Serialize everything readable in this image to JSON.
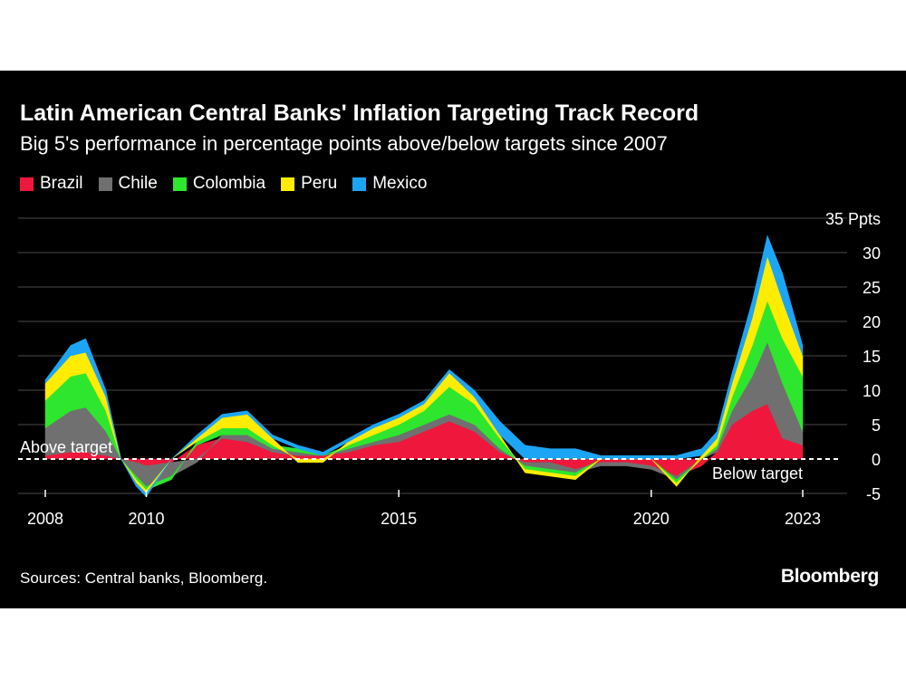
{
  "chart_data": {
    "type": "area",
    "title": "Latin American Central Banks' Inflation Targeting Track Record",
    "subtitle": "Big 5's performance in percentage points above/below targets since 2007",
    "ylabel": "Ppts",
    "ylim": [
      -5,
      35
    ],
    "yticks": [
      {
        "value": 35,
        "label": "35 Ppts"
      },
      {
        "value": 30,
        "label": "30"
      },
      {
        "value": 25,
        "label": "25"
      },
      {
        "value": 20,
        "label": "20"
      },
      {
        "value": 15,
        "label": "15"
      },
      {
        "value": 10,
        "label": "10"
      },
      {
        "value": 5,
        "label": "5"
      },
      {
        "value": 0,
        "label": "0"
      },
      {
        "value": -5,
        "label": "-5"
      }
    ],
    "xticks": [
      {
        "value": 2008,
        "label": "2008"
      },
      {
        "value": 2010,
        "label": "2010"
      },
      {
        "value": 2015,
        "label": "2015"
      },
      {
        "value": 2020,
        "label": "2020"
      },
      {
        "value": 2023,
        "label": "2023"
      }
    ],
    "x": [
      2008.0,
      2008.5,
      2008.8,
      2009.2,
      2009.5,
      2009.8,
      2010.0,
      2010.5,
      2011.0,
      2011.5,
      2012.0,
      2012.5,
      2013.0,
      2013.5,
      2014.0,
      2014.5,
      2015.0,
      2015.5,
      2016.0,
      2016.5,
      2017.0,
      2017.5,
      2018.0,
      2018.5,
      2019.0,
      2019.5,
      2020.0,
      2020.5,
      2021.0,
      2021.3,
      2021.6,
      2022.0,
      2022.3,
      2022.6,
      2023.0
    ],
    "series": [
      {
        "name": "Brazil",
        "color": "#f0173c",
        "values": [
          0.5,
          1.0,
          1.0,
          0.5,
          0,
          -0.5,
          -1.0,
          -0.5,
          2.0,
          3.0,
          2.5,
          1.0,
          0.5,
          0.5,
          1.0,
          2.0,
          2.5,
          4.0,
          5.5,
          4.0,
          1.0,
          -0.5,
          -0.5,
          -1.5,
          -0.5,
          -0.5,
          -1.0,
          -2.5,
          -1.0,
          1.0,
          5.0,
          7.0,
          8.0,
          3.0,
          2.0
        ]
      },
      {
        "name": "Chile",
        "color": "#707070",
        "values": [
          4.0,
          6.0,
          6.5,
          3.5,
          0,
          -2.0,
          -3.0,
          -2.0,
          -0.5,
          0.5,
          1.0,
          0.5,
          0.5,
          0.0,
          0.5,
          0.5,
          1.0,
          1.0,
          1.0,
          1.0,
          0.5,
          -0.5,
          -1.0,
          -0.5,
          -0.5,
          -0.5,
          -0.5,
          -0.5,
          0.0,
          0.5,
          2.0,
          5.0,
          9.0,
          8.0,
          2.0
        ]
      },
      {
        "name": "Colombia",
        "color": "#2ee62e",
        "values": [
          4.0,
          5.0,
          5.0,
          3.0,
          0,
          -0.5,
          -0.5,
          -0.5,
          0.5,
          1.0,
          1.0,
          0.5,
          0.5,
          0.0,
          0.5,
          1.0,
          1.5,
          2.0,
          4.0,
          3.0,
          1.5,
          -0.5,
          -0.5,
          -0.5,
          0.0,
          0.0,
          0.0,
          -0.5,
          0.0,
          0.5,
          2.0,
          4.5,
          6.0,
          6.5,
          8.0
        ]
      },
      {
        "name": "Peru",
        "color": "#ffec00",
        "values": [
          2.5,
          3.0,
          3.0,
          2.0,
          0,
          -0.5,
          -0.5,
          0.0,
          0.5,
          1.5,
          2.0,
          1.0,
          -0.5,
          -0.5,
          0.5,
          1.0,
          1.0,
          1.0,
          2.0,
          1.0,
          0.5,
          -0.5,
          -0.5,
          -0.5,
          0.0,
          0.0,
          0.0,
          -0.5,
          0.5,
          1.0,
          2.0,
          4.0,
          6.5,
          5.5,
          3.0
        ]
      },
      {
        "name": "Mexico",
        "color": "#1da5f5",
        "values": [
          0.5,
          1.5,
          2.0,
          1.0,
          0,
          -0.5,
          -0.5,
          0.0,
          0.5,
          0.5,
          0.5,
          0.5,
          0.5,
          0.5,
          0.5,
          0.5,
          0.5,
          0.5,
          0.5,
          1.0,
          2.0,
          2.0,
          1.5,
          1.5,
          0.5,
          0.5,
          0.5,
          0.5,
          1.0,
          1.0,
          1.5,
          2.5,
          3.0,
          4.0,
          1.5
        ]
      }
    ],
    "annotations": [
      {
        "text": "Above target",
        "x": 2008.0,
        "y": 0,
        "position": "above-left"
      },
      {
        "text": "Below target",
        "x": 2023.0,
        "y": 0,
        "position": "below-right"
      }
    ],
    "grid": true,
    "legend_position": "top-left"
  },
  "legend": [
    {
      "label": "Brazil",
      "color": "#f0173c"
    },
    {
      "label": "Chile",
      "color": "#707070"
    },
    {
      "label": "Colombia",
      "color": "#2ee62e"
    },
    {
      "label": "Peru",
      "color": "#ffec00"
    },
    {
      "label": "Mexico",
      "color": "#1da5f5"
    }
  ],
  "footer": {
    "source": "Sources: Central banks, Bloomberg.",
    "brand": "Bloomberg"
  }
}
